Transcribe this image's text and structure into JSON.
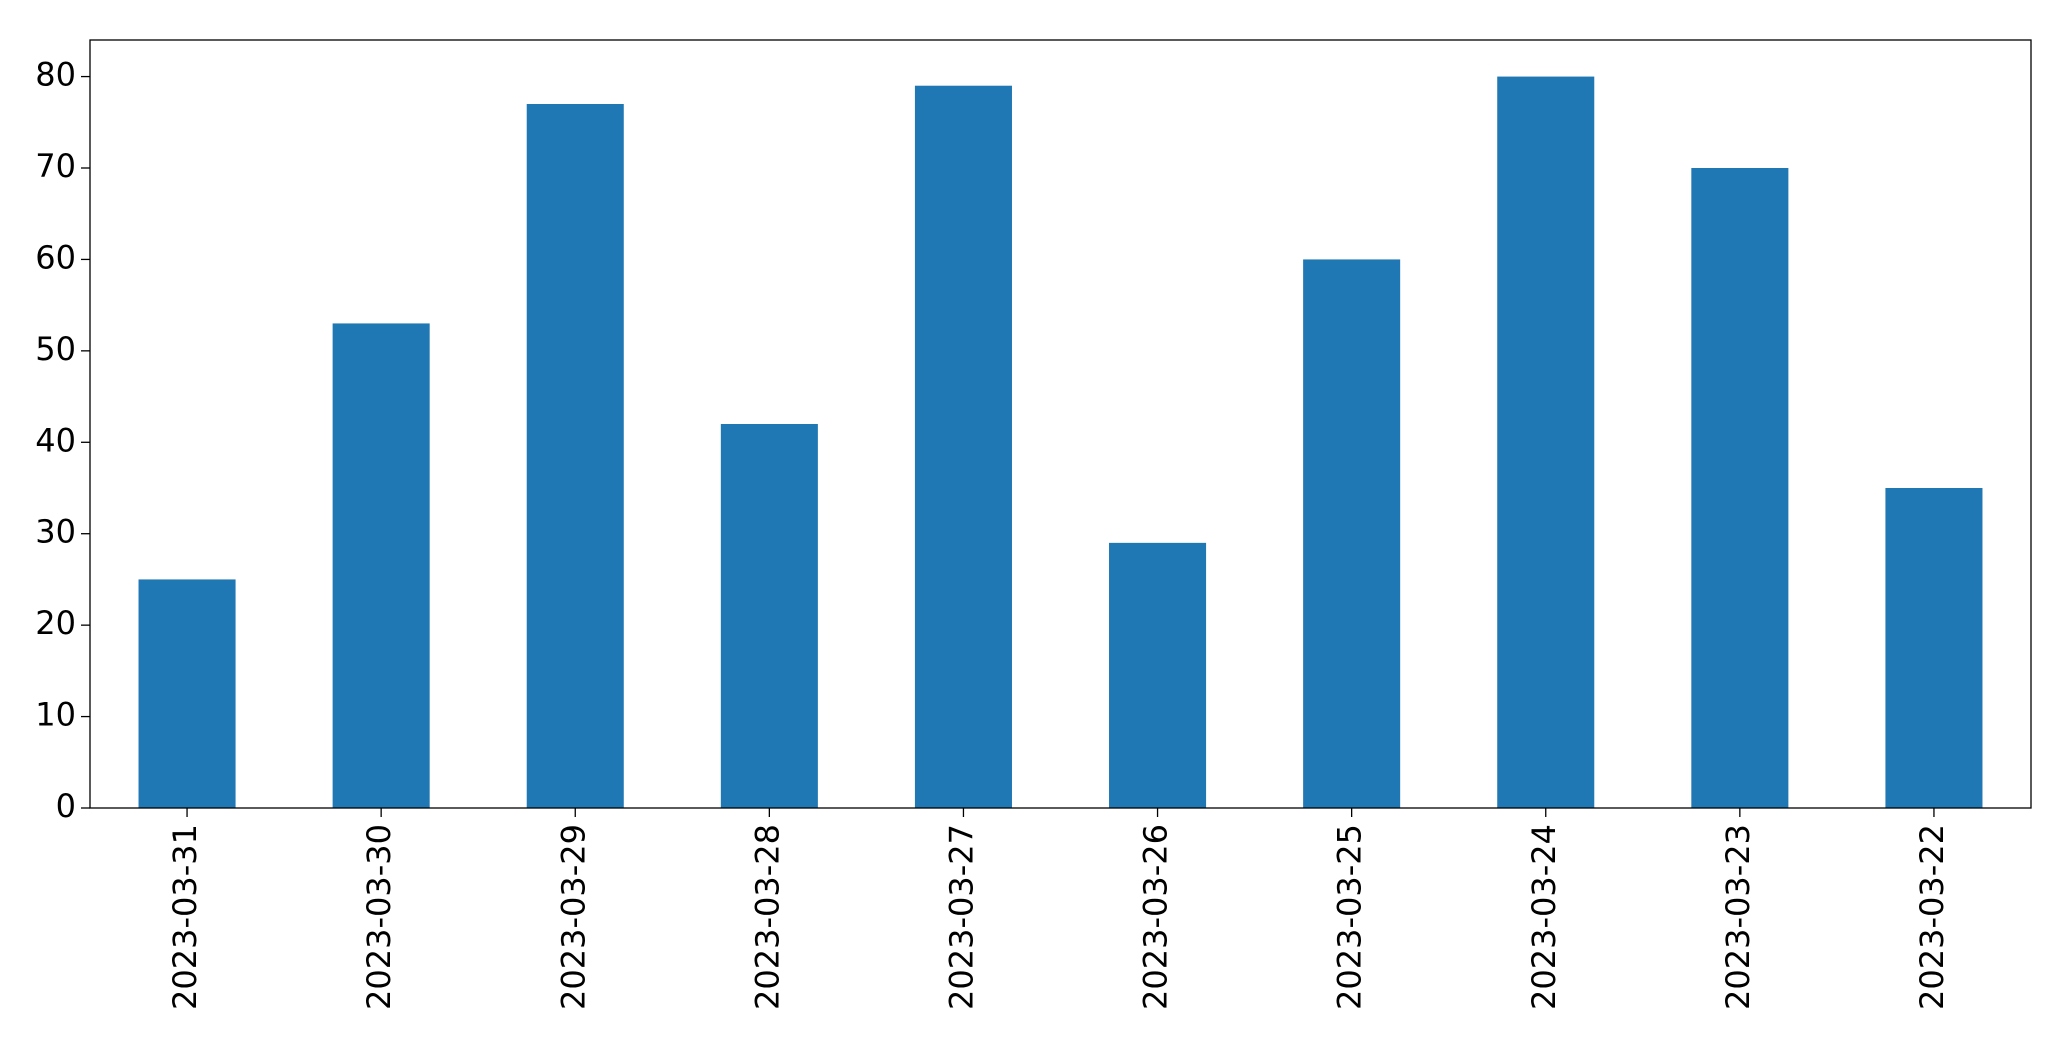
{
  "chart_data": {
    "type": "bar",
    "categories": [
      "2023-03-31",
      "2023-03-30",
      "2023-03-29",
      "2023-03-28",
      "2023-03-27",
      "2023-03-26",
      "2023-03-25",
      "2023-03-24",
      "2023-03-23",
      "2023-03-22"
    ],
    "values": [
      25,
      53,
      77,
      42,
      79,
      29,
      60,
      80,
      70,
      35
    ],
    "color": "#1f77b4",
    "ylim": [
      0,
      84
    ],
    "yticks": [
      0,
      10,
      20,
      30,
      40,
      50,
      60,
      70,
      80
    ],
    "grid": false
  }
}
